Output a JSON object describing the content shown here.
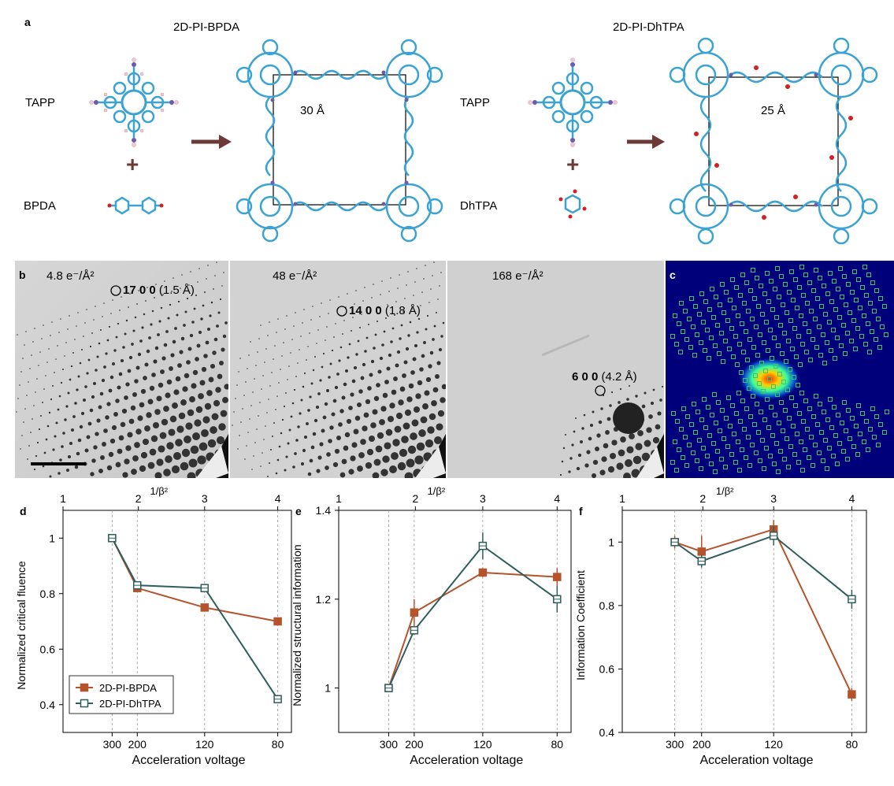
{
  "panel_a": {
    "label": "a",
    "left_title": "2D-PI-BPDA",
    "right_title": "2D-PI-DhTPA",
    "left_monomer_top": "TAPP",
    "left_monomer_bottom": "BPDA",
    "right_monomer_top": "TAPP",
    "right_monomer_bottom": "DhTPA",
    "left_pore": "30 Å",
    "right_pore": "25 Å",
    "plus": "+"
  },
  "panel_b": {
    "label": "b",
    "frames": [
      {
        "dose": "4.8 e⁻/Å²",
        "reflection": "17 0 0",
        "resolution": "(1.5 Å)"
      },
      {
        "dose": "48 e⁻/Å²",
        "reflection": "14 0 0",
        "resolution": "(1.8 Å)"
      },
      {
        "dose": "168 e⁻/Å²",
        "reflection": "6 0 0",
        "resolution": "(4.2 Å)"
      }
    ]
  },
  "panel_c": {
    "label": "c"
  },
  "colors": {
    "bpda": "#b5532c",
    "dhtpa": "#2f5f5b",
    "carbon": "#3aa3d4",
    "nitrogen": "#6a5bb0",
    "oxygen": "#d42020",
    "hydrogen": "#f0c8d0",
    "arrow": "#6b3a36",
    "heatmap_bg": "#00007a",
    "spot_box": "#3cc46b"
  },
  "chart_data": [
    {
      "panel": "d",
      "type": "line",
      "ylabel": "Normalized critical fluence",
      "xlabel": "Acceleration voltage",
      "top_axis_label": "1/β²",
      "x": [
        "300",
        "200",
        "120",
        "80"
      ],
      "top_ticks": [
        "1",
        "2",
        "3",
        "4"
      ],
      "ylim": [
        0.3,
        1.1
      ],
      "yticks": [
        "0.4",
        "0.6",
        "0.8",
        "1"
      ],
      "legend_position": "bottom-left",
      "series": [
        {
          "name": "2D-PI-BPDA",
          "values": [
            1.0,
            0.82,
            0.75,
            0.7
          ],
          "err": [
            0.0,
            0.01,
            0.0,
            0.0
          ]
        },
        {
          "name": "2D-PI-DhTPA",
          "values": [
            1.0,
            0.83,
            0.82,
            0.42
          ],
          "err": [
            0.0,
            0.0,
            0.0,
            0.01
          ]
        }
      ]
    },
    {
      "panel": "e",
      "type": "line",
      "ylabel": "Normalized structural information",
      "xlabel": "Acceleration voltage",
      "top_axis_label": "1/β²",
      "x": [
        "300",
        "200",
        "120",
        "80"
      ],
      "top_ticks": [
        "1",
        "2",
        "3",
        "4"
      ],
      "ylim": [
        0.9,
        1.4
      ],
      "yticks": [
        "1",
        "1.2",
        "1.4"
      ],
      "series": [
        {
          "name": "2D-PI-BPDA",
          "values": [
            1.0,
            1.17,
            1.26,
            1.25
          ],
          "err": [
            0.0,
            0.03,
            0.01,
            0.02
          ]
        },
        {
          "name": "2D-PI-DhTPA",
          "values": [
            1.0,
            1.13,
            1.32,
            1.2
          ],
          "err": [
            0.0,
            0.01,
            0.03,
            0.03
          ]
        }
      ]
    },
    {
      "panel": "f",
      "type": "line",
      "ylabel": "Information Coefficient",
      "xlabel": "Acceleration voltage",
      "top_axis_label": "1/β²",
      "x": [
        "300",
        "200",
        "120",
        "80"
      ],
      "top_ticks": [
        "1",
        "2",
        "3",
        "4"
      ],
      "ylim": [
        0.4,
        1.1
      ],
      "yticks": [
        "0.4",
        "0.6",
        "0.8",
        "1"
      ],
      "series": [
        {
          "name": "2D-PI-BPDA",
          "values": [
            1.0,
            0.97,
            1.04,
            0.52
          ],
          "err": [
            0.02,
            0.05,
            0.03,
            0.02
          ]
        },
        {
          "name": "2D-PI-DhTPA",
          "values": [
            1.0,
            0.94,
            1.02,
            0.82
          ],
          "err": [
            0.0,
            0.02,
            0.03,
            0.03
          ]
        }
      ]
    }
  ]
}
